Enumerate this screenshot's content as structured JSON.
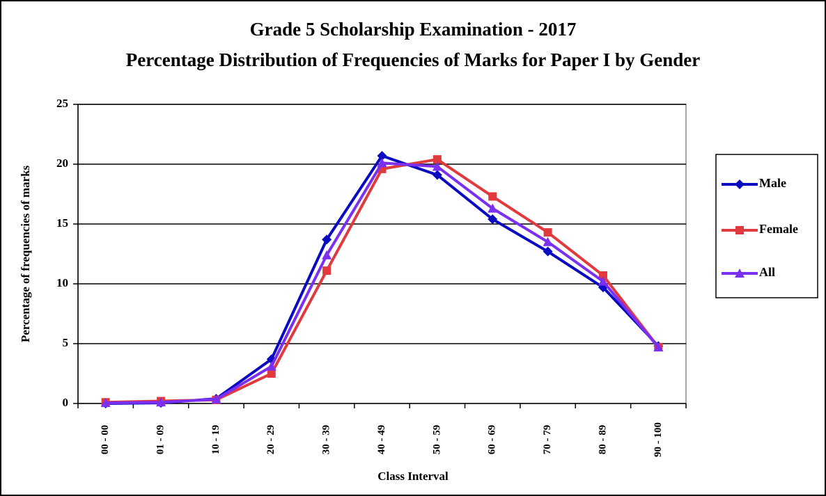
{
  "chart_data": {
    "type": "line",
    "title": "Grade 5 Scholarship Examination - 2017",
    "subtitle": "Percentage Distribution of Frequencies of Marks for Paper I by Gender",
    "x_label": "Class Interval",
    "y_label": "Percentage of frequencies of marks",
    "categories": [
      "00 - 00",
      "01 - 09",
      "10 - 19",
      "20 - 29",
      "30 - 39",
      "40 - 49",
      "50 - 59",
      "60 - 69",
      "70 - 79",
      "80 - 89",
      "90 - 100"
    ],
    "series": [
      {
        "name": "Male",
        "color": "#0a0ac0",
        "marker": "diamond",
        "values": [
          0,
          0.05,
          0.4,
          3.7,
          13.7,
          20.7,
          19.1,
          15.4,
          12.7,
          9.7,
          4.8
        ]
      },
      {
        "name": "Female",
        "color": "#e0393e",
        "marker": "square",
        "values": [
          0.1,
          0.2,
          0.3,
          2.5,
          11.1,
          19.6,
          20.4,
          17.3,
          14.3,
          10.7,
          4.7
        ]
      },
      {
        "name": "All",
        "color": "#7b2ff2",
        "marker": "triangle",
        "values": [
          0.05,
          0.1,
          0.35,
          3.1,
          12.4,
          20.1,
          19.8,
          16.3,
          13.5,
          10.2,
          4.7
        ]
      }
    ],
    "ylim": [
      0,
      25
    ],
    "yticks": [
      0,
      5,
      10,
      15,
      20,
      25
    ],
    "grid": true,
    "legend": "right"
  }
}
